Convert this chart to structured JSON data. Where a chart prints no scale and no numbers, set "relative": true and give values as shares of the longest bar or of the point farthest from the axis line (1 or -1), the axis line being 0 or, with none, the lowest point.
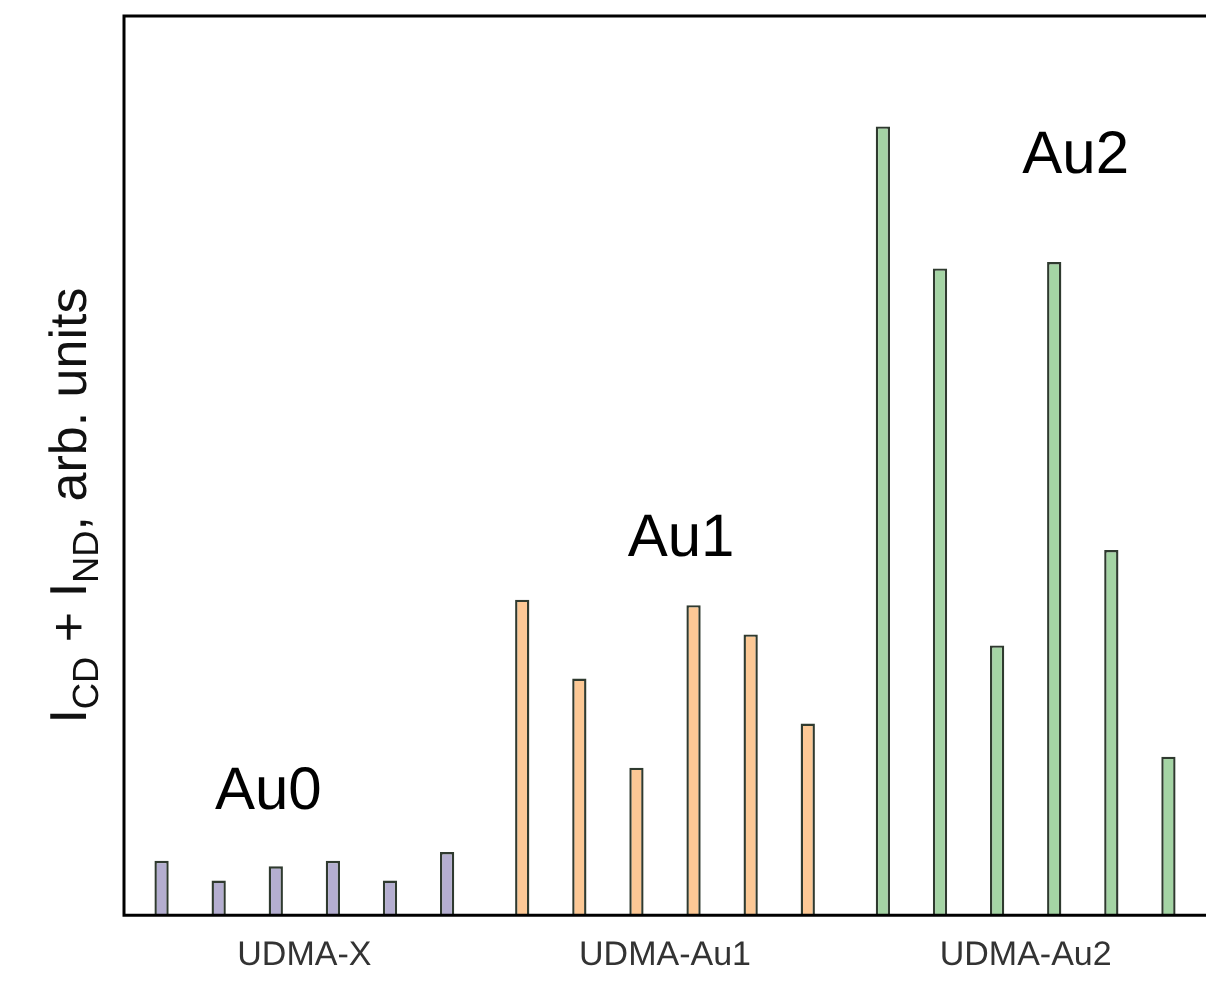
{
  "chart_data": {
    "type": "bar",
    "relative": true,
    "ylabel": "I$_{CD}$ + I$_{ND}$, arb. units",
    "categories": [
      "UDMA-X",
      "UDMA-Au1",
      "UDMA-Au2"
    ],
    "series": [
      {
        "colors": [
          "#b4aed0",
          "#fcc895",
          "#a4d4a4"
        ],
        "values": [
          0.069,
          0.4,
          1
        ]
      },
      {
        "colors": [
          "#b4aed0",
          "#fcc895",
          "#a4d4a4"
        ],
        "values": [
          0.044,
          0.3,
          0.82
        ]
      },
      {
        "colors": [
          "#b4aed0",
          "#fcc895",
          "#a4d4a4"
        ],
        "values": [
          0.062,
          0.187,
          0.342
        ]
      },
      {
        "colors": [
          "#b4aed0",
          "#fcc895",
          "#a4d4a4"
        ],
        "values": [
          0.069,
          0.393,
          0.828
        ]
      },
      {
        "colors": [
          "#b4aed0",
          "#fcc895",
          "#a4d4a4"
        ],
        "values": [
          0.044,
          0.356,
          0.463
        ]
      },
      {
        "colors": [
          "#b4aed0",
          "#fcc895",
          "#a4d4a4"
        ],
        "values": [
          0.08,
          0.243,
          0.201
        ]
      }
    ],
    "annotations": [
      "Au0",
      "Au1",
      "Au2"
    ],
    "grid": false,
    "legend": false
  }
}
